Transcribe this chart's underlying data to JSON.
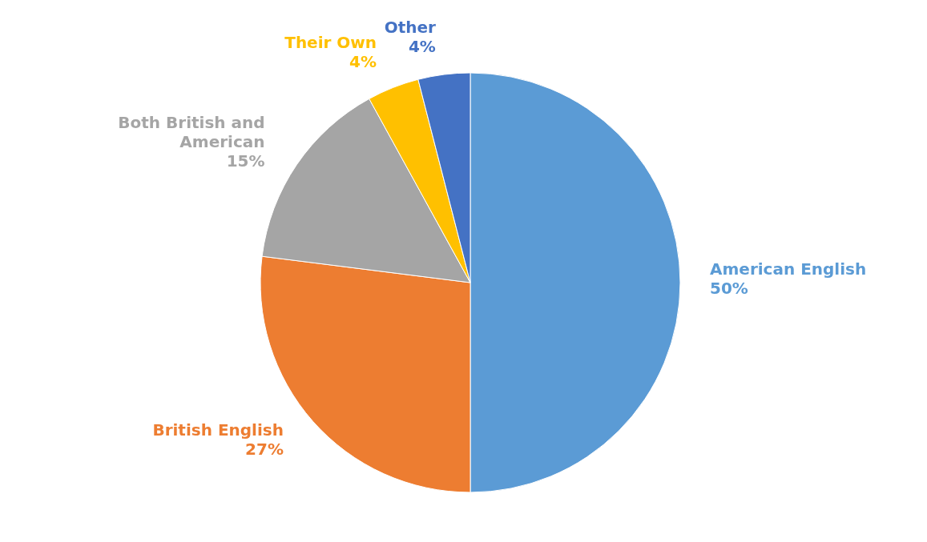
{
  "chart_data": {
    "type": "pie",
    "categories": [
      "American English",
      "British English",
      "Both British and American",
      "Their Own",
      "Other"
    ],
    "values": [
      50,
      27,
      15,
      4,
      4
    ],
    "colors": [
      "#5b9bd5",
      "#ed7d31",
      "#a5a5a5",
      "#ffc000",
      "#4472c4"
    ],
    "value_labels": [
      "50%",
      "27%",
      "15%",
      "4%",
      "4%"
    ],
    "legend": false
  }
}
